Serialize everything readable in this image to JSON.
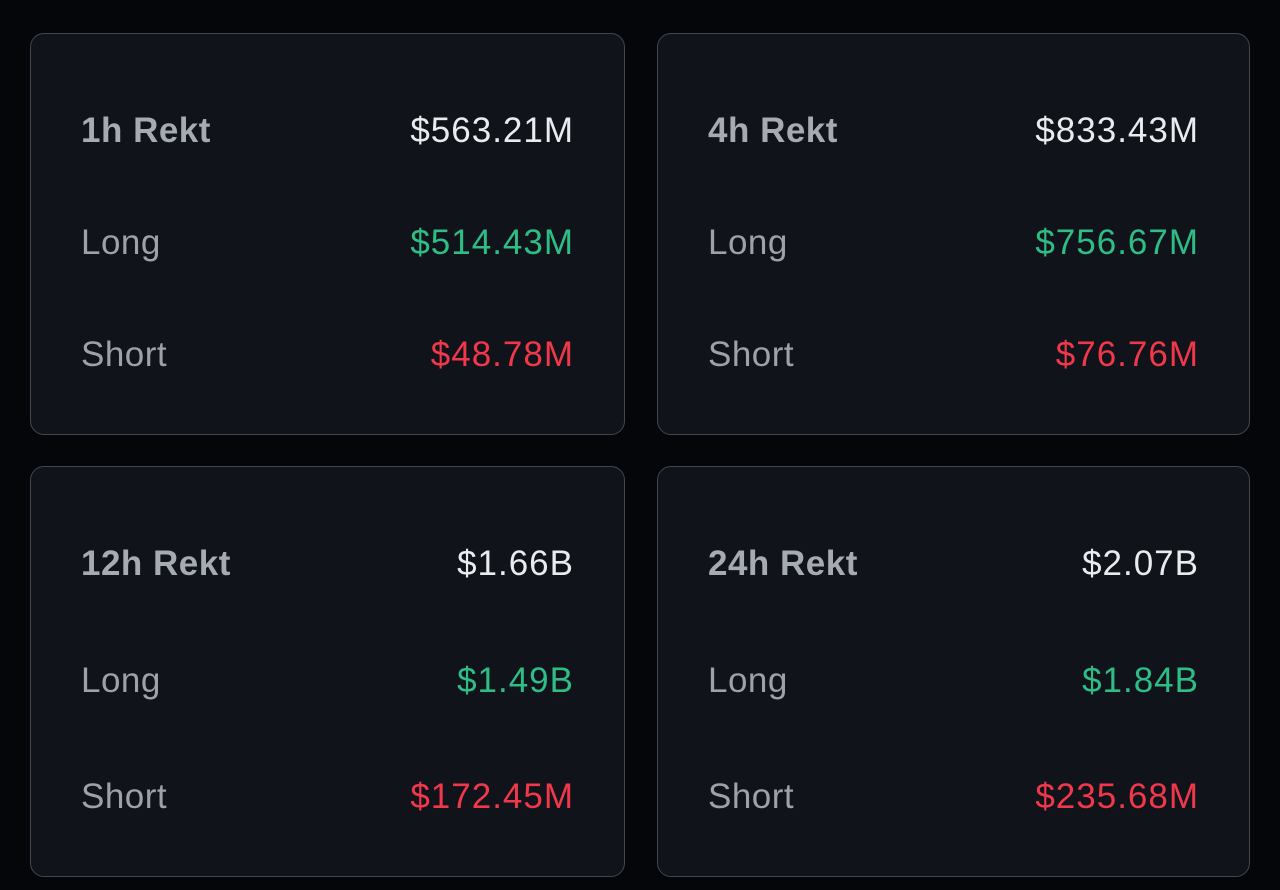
{
  "colors": {
    "page_bg": "#04060a",
    "card_bg": "#10131a",
    "card_border": "#42464e",
    "title_color": "#a6aab1",
    "label_color": "#9da1a9",
    "total_color": "#e9ebee",
    "long_color": "#2ebd85",
    "short_color": "#f1384b"
  },
  "cards": [
    {
      "title": "1h Rekt",
      "total": "$563.21M",
      "long": {
        "label": "Long",
        "value": "$514.43M"
      },
      "short": {
        "label": "Short",
        "value": "$48.78M"
      }
    },
    {
      "title": "4h Rekt",
      "total": "$833.43M",
      "long": {
        "label": "Long",
        "value": "$756.67M"
      },
      "short": {
        "label": "Short",
        "value": "$76.76M"
      }
    },
    {
      "title": "12h Rekt",
      "total": "$1.66B",
      "long": {
        "label": "Long",
        "value": "$1.49B"
      },
      "short": {
        "label": "Short",
        "value": "$172.45M"
      }
    },
    {
      "title": "24h Rekt",
      "total": "$2.07B",
      "long": {
        "label": "Long",
        "value": "$1.84B"
      },
      "short": {
        "label": "Short",
        "value": "$235.68M"
      }
    }
  ]
}
